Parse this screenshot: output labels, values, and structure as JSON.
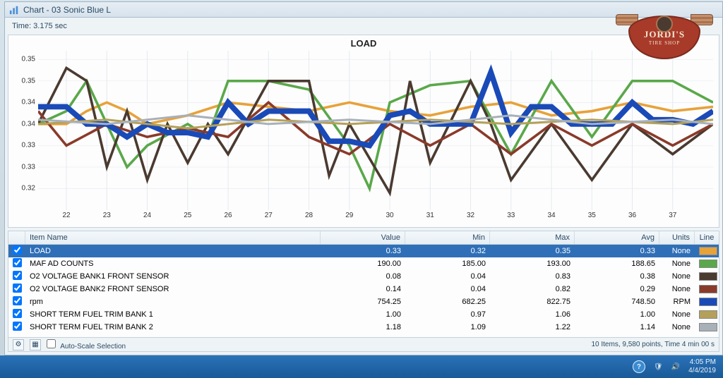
{
  "window": {
    "title": "Chart - 03 Sonic Blue L",
    "title_color": "#2a4a64"
  },
  "time_label": "Time: 3.175 sec",
  "chart_title": "LOAD",
  "y_axis": {
    "min": 0.315,
    "max": 0.352,
    "ticks": [
      {
        "v": 0.35,
        "label": "0.35"
      },
      {
        "v": 0.345,
        "label": "0.35"
      },
      {
        "v": 0.34,
        "label": "0.34"
      },
      {
        "v": 0.335,
        "label": "0.34"
      },
      {
        "v": 0.33,
        "label": "0.33"
      },
      {
        "v": 0.325,
        "label": "0.33"
      },
      {
        "v": 0.32,
        "label": "0.32"
      }
    ],
    "grid_color": "#e4e9ee"
  },
  "x_axis": {
    "min": 21.3,
    "max": 38.0,
    "ticks": [
      22,
      23,
      24,
      25,
      26,
      27,
      28,
      29,
      30,
      31,
      32,
      33,
      34,
      35,
      36,
      37
    ]
  },
  "series": [
    {
      "name": "LOAD",
      "color": "#e7a23a",
      "width": 1.2,
      "points": [
        [
          21.3,
          0.335
        ],
        [
          22,
          0.335
        ],
        [
          22.5,
          0.338
        ],
        [
          23,
          0.34
        ],
        [
          23.5,
          0.338
        ],
        [
          24,
          0.335
        ],
        [
          25,
          0.337
        ],
        [
          26,
          0.34
        ],
        [
          27,
          0.339
        ],
        [
          28,
          0.338
        ],
        [
          29,
          0.34
        ],
        [
          30,
          0.338
        ],
        [
          31,
          0.337
        ],
        [
          32,
          0.339
        ],
        [
          33,
          0.34
        ],
        [
          34,
          0.337
        ],
        [
          35,
          0.338
        ],
        [
          36,
          0.34
        ],
        [
          37,
          0.338
        ],
        [
          38,
          0.339
        ]
      ]
    },
    {
      "name": "MAF",
      "color": "#5aa84a",
      "width": 1.2,
      "points": [
        [
          21.3,
          0.335
        ],
        [
          22,
          0.338
        ],
        [
          22.5,
          0.345
        ],
        [
          23,
          0.335
        ],
        [
          23.5,
          0.325
        ],
        [
          24,
          0.33
        ],
        [
          25,
          0.335
        ],
        [
          25.5,
          0.332
        ],
        [
          26,
          0.345
        ],
        [
          27,
          0.345
        ],
        [
          28,
          0.343
        ],
        [
          29,
          0.33
        ],
        [
          29.5,
          0.32
        ],
        [
          30,
          0.34
        ],
        [
          31,
          0.344
        ],
        [
          32,
          0.345
        ],
        [
          33,
          0.328
        ],
        [
          34,
          0.345
        ],
        [
          35,
          0.332
        ],
        [
          36,
          0.345
        ],
        [
          37,
          0.345
        ],
        [
          38,
          0.34
        ]
      ]
    },
    {
      "name": "O2B1",
      "color": "#4a3a30",
      "width": 1.2,
      "points": [
        [
          21.3,
          0.335
        ],
        [
          22,
          0.348
        ],
        [
          22.5,
          0.345
        ],
        [
          23,
          0.325
        ],
        [
          23.5,
          0.338
        ],
        [
          24,
          0.322
        ],
        [
          24.5,
          0.335
        ],
        [
          25,
          0.326
        ],
        [
          25.5,
          0.335
        ],
        [
          26,
          0.328
        ],
        [
          27,
          0.345
        ],
        [
          28,
          0.345
        ],
        [
          28.5,
          0.323
        ],
        [
          29,
          0.335
        ],
        [
          30,
          0.319
        ],
        [
          30.5,
          0.345
        ],
        [
          31,
          0.326
        ],
        [
          32,
          0.345
        ],
        [
          32.5,
          0.335
        ],
        [
          33,
          0.322
        ],
        [
          34,
          0.335
        ],
        [
          35,
          0.322
        ],
        [
          36,
          0.335
        ],
        [
          37,
          0.328
        ],
        [
          38,
          0.335
        ]
      ]
    },
    {
      "name": "O2B2",
      "color": "#8a3a2a",
      "width": 1.2,
      "points": [
        [
          21.3,
          0.338
        ],
        [
          22,
          0.33
        ],
        [
          23,
          0.335
        ],
        [
          24,
          0.332
        ],
        [
          25,
          0.334
        ],
        [
          26,
          0.332
        ],
        [
          27,
          0.34
        ],
        [
          28,
          0.332
        ],
        [
          29,
          0.328
        ],
        [
          30,
          0.335
        ],
        [
          31,
          0.33
        ],
        [
          32,
          0.335
        ],
        [
          33,
          0.328
        ],
        [
          34,
          0.335
        ],
        [
          35,
          0.33
        ],
        [
          36,
          0.335
        ],
        [
          37,
          0.33
        ],
        [
          38,
          0.335
        ]
      ]
    },
    {
      "name": "RPM",
      "color": "#1a4ab8",
      "width": 2.6,
      "points": [
        [
          21.3,
          0.339
        ],
        [
          22,
          0.339
        ],
        [
          22.5,
          0.335
        ],
        [
          23,
          0.335
        ],
        [
          23.5,
          0.332
        ],
        [
          24,
          0.335
        ],
        [
          24.5,
          0.333
        ],
        [
          25,
          0.333
        ],
        [
          25.5,
          0.332
        ],
        [
          26,
          0.34
        ],
        [
          26.5,
          0.335
        ],
        [
          27,
          0.338
        ],
        [
          27.5,
          0.338
        ],
        [
          28,
          0.338
        ],
        [
          28.5,
          0.331
        ],
        [
          29,
          0.331
        ],
        [
          29.5,
          0.33
        ],
        [
          30,
          0.337
        ],
        [
          30.5,
          0.338
        ],
        [
          31,
          0.335
        ],
        [
          31.5,
          0.335
        ],
        [
          32,
          0.335
        ],
        [
          32.5,
          0.347
        ],
        [
          33,
          0.333
        ],
        [
          33.5,
          0.339
        ],
        [
          34,
          0.339
        ],
        [
          34.5,
          0.335
        ],
        [
          35,
          0.335
        ],
        [
          35.5,
          0.335
        ],
        [
          36,
          0.34
        ],
        [
          36.5,
          0.336
        ],
        [
          37,
          0.336
        ],
        [
          37.5,
          0.335
        ],
        [
          38,
          0.338
        ]
      ]
    },
    {
      "name": "STFT1",
      "color": "#b4a058",
      "width": 1.0,
      "points": [
        [
          21.3,
          0.335
        ],
        [
          23,
          0.336
        ],
        [
          25,
          0.334
        ],
        [
          27,
          0.336
        ],
        [
          29,
          0.335
        ],
        [
          31,
          0.336
        ],
        [
          33,
          0.335
        ],
        [
          35,
          0.336
        ],
        [
          37,
          0.335
        ],
        [
          38,
          0.336
        ]
      ]
    },
    {
      "name": "STFT2",
      "color": "#a8b0b8",
      "width": 1.0,
      "points": [
        [
          21.3,
          0.336
        ],
        [
          23,
          0.335
        ],
        [
          25,
          0.337
        ],
        [
          27,
          0.335
        ],
        [
          29,
          0.336
        ],
        [
          31,
          0.335
        ],
        [
          33,
          0.337
        ],
        [
          35,
          0.335
        ],
        [
          37,
          0.336
        ],
        [
          38,
          0.335
        ]
      ]
    }
  ],
  "columns": {
    "name": "Item Name",
    "value": "Value",
    "min": "Min",
    "max": "Max",
    "avg": "Avg",
    "units": "Units",
    "line": "Line"
  },
  "rows": [
    {
      "sel": true,
      "name": "LOAD",
      "value": "0.33",
      "min": "0.32",
      "max": "0.35",
      "avg": "0.33",
      "units": "None",
      "color": "#e7a23a"
    },
    {
      "sel": false,
      "name": "MAF AD COUNTS",
      "value": "190.00",
      "min": "185.00",
      "max": "193.00",
      "avg": "188.65",
      "units": "None",
      "color": "#5aa84a"
    },
    {
      "sel": false,
      "name": "O2 VOLTAGE BANK1 FRONT SENSOR",
      "value": "0.08",
      "min": "0.04",
      "max": "0.83",
      "avg": "0.38",
      "units": "None",
      "color": "#4a3a30"
    },
    {
      "sel": false,
      "name": "O2 VOLTAGE BANK2 FRONT SENSOR",
      "value": "0.14",
      "min": "0.04",
      "max": "0.82",
      "avg": "0.29",
      "units": "None",
      "color": "#8a3a2a"
    },
    {
      "sel": false,
      "name": "rpm",
      "value": "754.25",
      "min": "682.25",
      "max": "822.75",
      "avg": "748.50",
      "units": "RPM",
      "color": "#1a4ab8"
    },
    {
      "sel": false,
      "name": "SHORT TERM FUEL TRIM BANK 1",
      "value": "1.00",
      "min": "0.97",
      "max": "1.06",
      "avg": "1.00",
      "units": "None",
      "color": "#b4a058"
    },
    {
      "sel": false,
      "name": "SHORT TERM FUEL TRIM BANK 2",
      "value": "1.18",
      "min": "1.09",
      "max": "1.22",
      "avg": "1.14",
      "units": "None",
      "color": "#a8b0b8"
    }
  ],
  "status": {
    "autoscale_label": "Auto-Scale Selection",
    "summary": "10 Items, 9,580 points, Time 4 min 00 s"
  },
  "taskbar": {
    "time": "4:05 PM",
    "date": "4/4/2019"
  },
  "logo": {
    "top": "JORDI'S",
    "bot": "TIRE SHOP"
  }
}
